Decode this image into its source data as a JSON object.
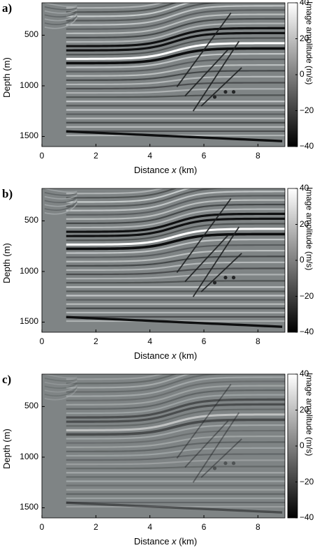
{
  "figure": {
    "panels": [
      {
        "label": "a)"
      },
      {
        "label": "b)"
      },
      {
        "label": "c)"
      }
    ],
    "x_axis_label_prefix": "Distance ",
    "x_axis_label_var": "x",
    "x_axis_label_suffix": " (km)",
    "y_axis_label": "Depth (m)",
    "colorbar_label": "Image amplitude (m/s)",
    "colors": {
      "background": "#ffffff",
      "seismic_mid": "#7f8485",
      "axis": "#000000"
    }
  },
  "chart_data": [
    {
      "type": "heatmap",
      "panel": "a)",
      "xlabel": "Distance x (km)",
      "ylabel": "Depth (m)",
      "colorbar_label": "Image amplitude (m/s)",
      "xlim": [
        0,
        9
      ],
      "ylim": [
        1600,
        180
      ],
      "x_ticks": [
        "0",
        "2",
        "4",
        "6",
        "8"
      ],
      "y_ticks": [
        "500",
        "1000",
        "1500"
      ],
      "colorbar_ticks": [
        "40",
        "20",
        "0",
        "−20",
        "−40"
      ],
      "colorbar_range": [
        -40,
        40
      ],
      "colormap": "gray",
      "reflector_strength": 1.0
    },
    {
      "type": "heatmap",
      "panel": "b)",
      "xlabel": "Distance x (km)",
      "ylabel": "Depth (m)",
      "colorbar_label": "Image amplitude (m/s)",
      "xlim": [
        0,
        9
      ],
      "ylim": [
        1600,
        180
      ],
      "x_ticks": [
        "0",
        "2",
        "4",
        "6",
        "8"
      ],
      "y_ticks": [
        "500",
        "1000",
        "1500"
      ],
      "colorbar_ticks": [
        "40",
        "20",
        "0",
        "−20",
        "−40"
      ],
      "colorbar_range": [
        -40,
        40
      ],
      "colormap": "gray",
      "reflector_strength": 1.0
    },
    {
      "type": "heatmap",
      "panel": "c)",
      "xlabel": "Distance x (km)",
      "ylabel": "Depth (m)",
      "colorbar_label": "Image amplitude (m/s)",
      "xlim": [
        0,
        9
      ],
      "ylim": [
        1600,
        180
      ],
      "x_ticks": [
        "0",
        "2",
        "4",
        "6",
        "8"
      ],
      "y_ticks": [
        "500",
        "1000",
        "1500"
      ],
      "colorbar_ticks": [
        "40",
        "20",
        "0",
        "−20",
        "−40"
      ],
      "colorbar_range": [
        -40,
        40
      ],
      "colormap": "gray",
      "reflector_strength": 0.45
    }
  ]
}
